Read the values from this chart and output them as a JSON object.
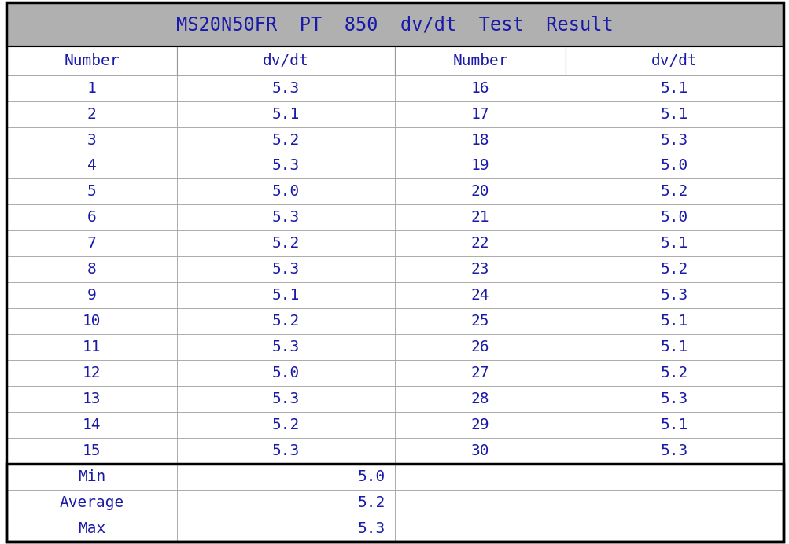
{
  "title": "MS20N50FR  PT  850  dv/dt  Test  Result",
  "title_bg": "#b0b0b0",
  "header_bg": "#ffffff",
  "data_bg": "#ffffff",
  "summary_bg": "#ffffff",
  "col_headers": [
    "Number",
    "dv/dt",
    "Number",
    "dv/dt"
  ],
  "left_numbers": [
    1,
    2,
    3,
    4,
    5,
    6,
    7,
    8,
    9,
    10,
    11,
    12,
    13,
    14,
    15
  ],
  "left_dvdt": [
    5.3,
    5.1,
    5.2,
    5.3,
    5.0,
    5.3,
    5.2,
    5.3,
    5.1,
    5.2,
    5.3,
    5.0,
    5.3,
    5.2,
    5.3
  ],
  "right_numbers": [
    16,
    17,
    18,
    19,
    20,
    21,
    22,
    23,
    24,
    25,
    26,
    27,
    28,
    29,
    30
  ],
  "right_dvdt": [
    5.1,
    5.1,
    5.3,
    5.0,
    5.2,
    5.0,
    5.1,
    5.2,
    5.3,
    5.1,
    5.1,
    5.2,
    5.3,
    5.1,
    5.3
  ],
  "summary_labels": [
    "Min",
    "Average",
    "Max"
  ],
  "summary_values": [
    "5.0",
    "5.2",
    "5.3"
  ],
  "text_color": "#1a1aaa",
  "header_text_color": "#1a1aaa",
  "title_text_color": "#1a1aaa",
  "grid_color": "#999999",
  "outer_border_color": "#000000",
  "summary_border_color": "#000000",
  "font_size_title": 17,
  "font_size_header": 14,
  "font_size_data": 14,
  "font_size_summary": 14,
  "fig_bg": "#ffffff"
}
